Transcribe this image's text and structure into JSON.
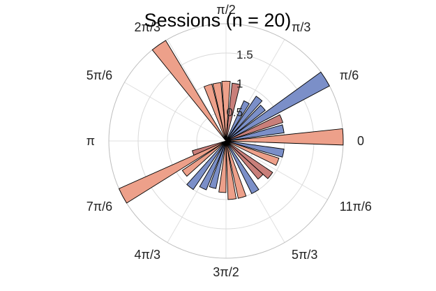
{
  "chart_data": {
    "type": "polar-bar",
    "title": "Sessions (n = 20)",
    "angle_tick_labels": [
      "0",
      "π/6",
      "π/3",
      "π/2",
      "2π/3",
      "5π/6",
      "π",
      "7π/6",
      "4π/3",
      "3π/2",
      "5π/3",
      "11π/6"
    ],
    "radial_ticks": [
      0.5,
      1,
      1.5
    ],
    "radial_tick_labels": [
      "0.5",
      "1",
      "1.5"
    ],
    "rlim": [
      0,
      2
    ],
    "grid": true,
    "bin_width_deg": 8,
    "colors": {
      "blue": "#7b8fc8",
      "salmon": "#eda08a",
      "rose": "#c97f7a"
    },
    "bars": [
      {
        "angle_deg": 2,
        "r": 2.0,
        "color": "salmon"
      },
      {
        "angle_deg": 12,
        "r": 1.0,
        "color": "blue"
      },
      {
        "angle_deg": 22,
        "r": 1.02,
        "color": "rose"
      },
      {
        "angle_deg": 32,
        "r": 2.0,
        "color": "blue"
      },
      {
        "angle_deg": 42,
        "r": 0.85,
        "color": "blue"
      },
      {
        "angle_deg": 52,
        "r": 0.92,
        "color": "blue"
      },
      {
        "angle_deg": 62,
        "r": 0.75,
        "color": "blue"
      },
      {
        "angle_deg": 80,
        "r": 0.99,
        "color": "rose"
      },
      {
        "angle_deg": 90,
        "r": 1.02,
        "color": "salmon"
      },
      {
        "angle_deg": 99,
        "r": 1.0,
        "color": "salmon"
      },
      {
        "angle_deg": 108,
        "r": 1.0,
        "color": "salmon"
      },
      {
        "angle_deg": 125,
        "r": 2.0,
        "color": "salmon"
      },
      {
        "angle_deg": 200,
        "r": 0.6,
        "color": "rose"
      },
      {
        "angle_deg": 208,
        "r": 2.0,
        "color": "salmon"
      },
      {
        "angle_deg": 218,
        "r": 0.9,
        "color": "salmon"
      },
      {
        "angle_deg": 232,
        "r": 1.0,
        "color": "blue"
      },
      {
        "angle_deg": 244,
        "r": 0.9,
        "color": "blue"
      },
      {
        "angle_deg": 254,
        "r": 0.83,
        "color": "blue"
      },
      {
        "angle_deg": 266,
        "r": 0.88,
        "color": "salmon"
      },
      {
        "angle_deg": 276,
        "r": 1.0,
        "color": "salmon"
      },
      {
        "angle_deg": 286,
        "r": 1.0,
        "color": "salmon"
      },
      {
        "angle_deg": 300,
        "r": 1.0,
        "color": "blue"
      },
      {
        "angle_deg": 314,
        "r": 0.85,
        "color": "rose"
      },
      {
        "angle_deg": 322,
        "r": 0.96,
        "color": "rose"
      },
      {
        "angle_deg": 338,
        "r": 0.95,
        "color": "salmon"
      },
      {
        "angle_deg": 348,
        "r": 1.0,
        "color": "blue"
      }
    ]
  }
}
